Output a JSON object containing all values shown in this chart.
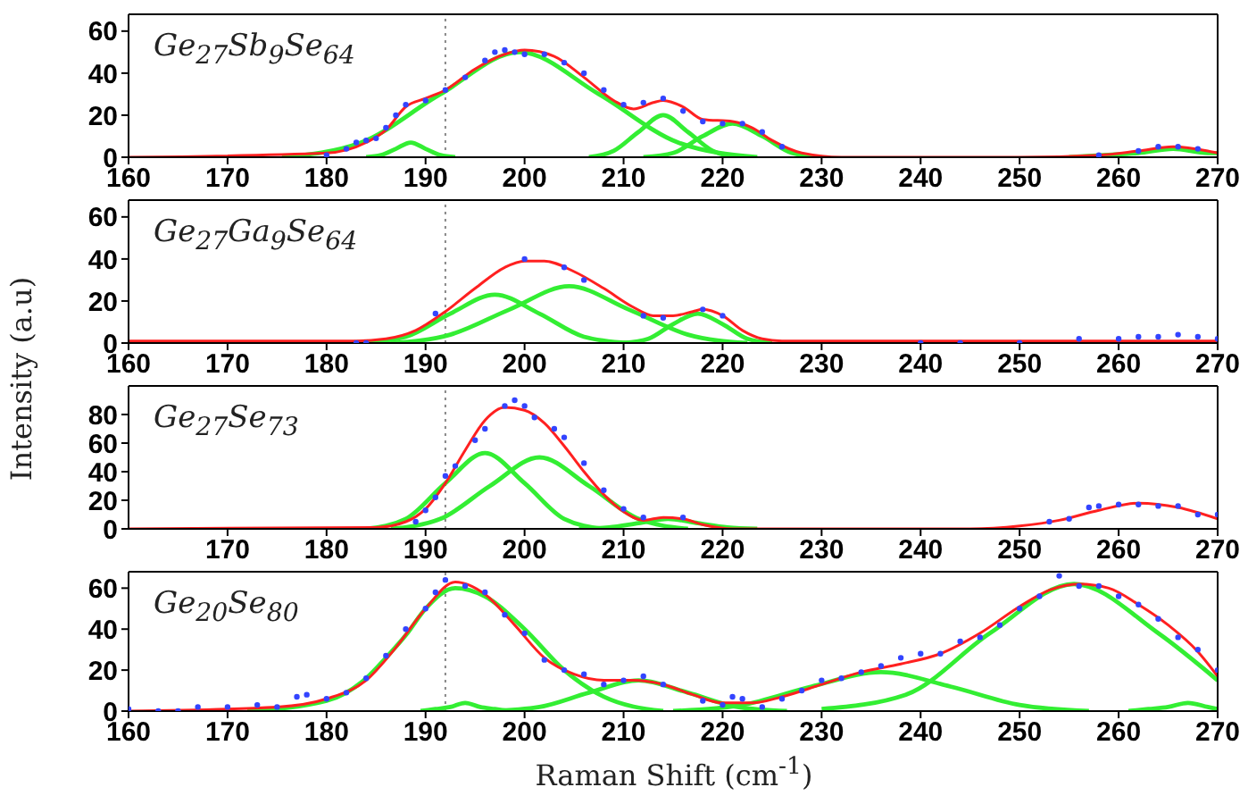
{
  "chart_data": [
    {
      "type": "line",
      "title": "Ge$_{27}$Sb$_{9}$Se$_{64}$",
      "xlim": [
        160,
        270
      ],
      "xticks": [
        160,
        170,
        180,
        190,
        200,
        210,
        220,
        230,
        240,
        250,
        260,
        270
      ],
      "ylim": [
        0,
        68
      ],
      "yticks": [
        0,
        20,
        40,
        60
      ],
      "ref_lines": [
        {
          "axis": "x",
          "value": 192,
          "color": "#888888",
          "line_style": "dotted"
        }
      ],
      "series": [
        {
          "type": "scatter",
          "marker": "circle",
          "color": "#3344ff",
          "x": [
            180,
            182,
            183,
            184,
            185,
            186,
            187,
            188,
            190,
            192,
            194,
            196,
            197,
            198,
            199,
            200,
            202,
            204,
            206,
            208,
            210,
            212,
            214,
            216,
            218,
            220,
            222,
            224,
            226,
            258,
            262,
            264,
            266,
            268
          ],
          "values": [
            1,
            4,
            7,
            8,
            9,
            14,
            20,
            25,
            27,
            32,
            38,
            46,
            50,
            51,
            50,
            49,
            49,
            45,
            40,
            32,
            25,
            26,
            28,
            22,
            17,
            16,
            16,
            12,
            5,
            1,
            3,
            5,
            5,
            4
          ]
        },
        {
          "color": "#33ee33",
          "x": [
            175.5,
            183.5,
            191.5,
            199.5,
            207.5,
            215.5,
            223.5
          ],
          "values": [
            0,
            7,
            30,
            50,
            30,
            7,
            0
          ]
        },
        {
          "color": "#33ee33",
          "x": [
            184,
            185.5,
            187,
            188.5,
            190,
            191.5,
            193
          ],
          "values": [
            0,
            1,
            4,
            7,
            4,
            1,
            0
          ]
        },
        {
          "color": "#33ee33",
          "x": [
            206.5,
            209,
            211.5,
            214,
            216.5,
            219,
            221.5
          ],
          "values": [
            0,
            3,
            12,
            20,
            12,
            3,
            0
          ]
        },
        {
          "color": "#33ee33",
          "x": [
            212,
            215,
            218,
            221,
            224,
            227,
            230
          ],
          "values": [
            0,
            2,
            10,
            16,
            10,
            2,
            0
          ]
        },
        {
          "color": "#33ee33",
          "x": [
            255,
            258.5,
            262,
            265.5,
            269,
            270
          ],
          "values": [
            0,
            1,
            2,
            4,
            2,
            2
          ]
        },
        {
          "color": "#ff2020",
          "x": [
            160,
            180,
            184,
            186,
            188,
            190,
            192,
            195,
            198,
            200,
            203,
            206,
            209,
            211,
            213,
            214,
            216,
            218,
            221,
            223,
            225,
            228,
            232,
            250,
            258,
            262,
            265.5,
            269,
            270
          ],
          "values": [
            0,
            2,
            7,
            13,
            24,
            28,
            32,
            42,
            49,
            51,
            48,
            38,
            27,
            23,
            26,
            27,
            24,
            18,
            17,
            14,
            8,
            2,
            0,
            0,
            1,
            3,
            5,
            3,
            2
          ]
        }
      ]
    },
    {
      "type": "line",
      "title": "Ge$_{27}$Ga$_{9}$Se$_{64}$",
      "ylabel": "Intensity (a.u)",
      "xlim": [
        160,
        270
      ],
      "xticks": [
        160,
        170,
        180,
        190,
        200,
        210,
        220,
        230,
        240,
        250,
        260,
        270
      ],
      "ylim": [
        0,
        68
      ],
      "yticks": [
        0,
        20,
        40,
        60
      ],
      "ref_lines": [
        {
          "axis": "x",
          "value": 192,
          "color": "#888888",
          "line_style": "dotted"
        }
      ],
      "series": [
        {
          "type": "scatter",
          "marker": "circle",
          "color": "#3344ff",
          "x": [
            183,
            184,
            191,
            200,
            204,
            206,
            212,
            214,
            218,
            220,
            240,
            244,
            250,
            256,
            260,
            262,
            264,
            266,
            268,
            270
          ],
          "values": [
            0,
            0,
            14,
            40,
            36,
            30,
            13,
            12,
            16,
            13,
            0,
            0,
            0,
            2,
            2,
            3,
            3,
            4,
            3,
            2
          ]
        },
        {
          "color": "#33ee33",
          "x": [
            183.5,
            188,
            192.5,
            197,
            201.5,
            206,
            210.5
          ],
          "values": [
            0,
            3,
            14,
            23,
            14,
            3,
            0
          ]
        },
        {
          "color": "#33ee33",
          "x": [
            186.5,
            192.5,
            198.5,
            204.5,
            210.5,
            216.5,
            222.5
          ],
          "values": [
            0,
            4,
            16,
            27,
            16,
            4,
            0
          ]
        },
        {
          "color": "#33ee33",
          "x": [
            210,
            212.5,
            215,
            217.5,
            220,
            222.5,
            225
          ],
          "values": [
            0,
            2,
            9,
            14,
            9,
            2,
            0
          ]
        },
        {
          "color": "#ff2020",
          "x": [
            160,
            183,
            186,
            189,
            192,
            195,
            198,
            200,
            202,
            205,
            208,
            211,
            213,
            215,
            217,
            218,
            220,
            222,
            224,
            226,
            270
          ],
          "values": [
            1,
            1,
            2,
            6,
            15,
            26,
            36,
            39,
            39,
            34,
            26,
            17,
            13,
            13,
            15,
            16,
            13,
            6,
            2,
            1,
            1
          ]
        }
      ]
    },
    {
      "type": "line",
      "title": "Ge$_{27}$Se$_{73}$",
      "xlim": [
        160,
        270
      ],
      "xticks": [
        170,
        180,
        190,
        200,
        210,
        220,
        230,
        240,
        250,
        260,
        270
      ],
      "ylim": [
        0,
        100
      ],
      "yticks": [
        0,
        20,
        40,
        60,
        80
      ],
      "ref_lines": [
        {
          "axis": "x",
          "value": 192,
          "color": "#888888",
          "line_style": "dotted"
        }
      ],
      "series": [
        {
          "type": "scatter",
          "marker": "circle",
          "color": "#3344ff",
          "x": [
            189,
            190,
            191,
            192,
            193,
            195,
            196,
            198,
            199,
            200,
            201,
            203,
            204,
            206,
            208,
            210,
            212,
            216,
            253,
            255,
            257,
            258,
            260,
            262,
            264,
            266,
            268,
            270
          ],
          "values": [
            5,
            13,
            22,
            37,
            44,
            62,
            70,
            86,
            90,
            86,
            78,
            70,
            64,
            46,
            27,
            14,
            8,
            8,
            5,
            7,
            15,
            16,
            17,
            17,
            16,
            16,
            10,
            10
          ]
        },
        {
          "color": "#33ee33",
          "x": [
            184,
            188,
            192,
            196,
            200,
            204,
            208
          ],
          "values": [
            0,
            7,
            32,
            53,
            32,
            7,
            0
          ]
        },
        {
          "color": "#33ee33",
          "x": [
            186.5,
            191.5,
            196.5,
            201.5,
            206.5,
            211.5,
            216.5
          ],
          "values": [
            0,
            7,
            30,
            50,
            30,
            7,
            0
          ]
        },
        {
          "color": "#33ee33",
          "x": [
            205.5,
            208.5,
            211.5,
            214.5,
            217.5,
            220.5,
            223.5
          ],
          "values": [
            0,
            1,
            4,
            7,
            4,
            1,
            0
          ]
        },
        {
          "color": "#ff2020",
          "x": [
            160,
            185,
            188,
            190,
            192,
            194,
            196,
            198,
            200,
            202,
            204,
            206,
            208,
            210,
            212,
            214,
            216,
            218,
            221,
            245,
            250,
            254,
            258,
            262,
            266,
            270
          ],
          "values": [
            0,
            1,
            5,
            14,
            32,
            55,
            76,
            85,
            83,
            74,
            58,
            40,
            24,
            12,
            6,
            8,
            7,
            3,
            0,
            0,
            2,
            6,
            13,
            18,
            15,
            7
          ]
        }
      ]
    },
    {
      "type": "line",
      "title": "Ge$_{20}$Se$_{80}$",
      "xlabel": "Raman Shift (cm$^{-1}$)",
      "xlim": [
        160,
        270
      ],
      "xticks": [
        160,
        170,
        180,
        190,
        200,
        210,
        220,
        230,
        240,
        250,
        260,
        270
      ],
      "ylim": [
        0,
        68
      ],
      "yticks": [
        0,
        20,
        40,
        60
      ],
      "ref_lines": [
        {
          "axis": "x",
          "value": 192,
          "color": "#888888",
          "line_style": "dotted"
        }
      ],
      "series": [
        {
          "type": "scatter",
          "marker": "circle",
          "color": "#3344ff",
          "x": [
            160,
            163,
            165,
            167,
            170,
            173,
            175,
            177,
            178,
            180,
            182,
            184,
            186,
            188,
            190,
            191,
            192,
            194,
            196,
            198,
            200,
            202,
            204,
            206,
            208,
            210,
            212,
            214,
            218,
            220,
            221,
            222,
            224,
            226,
            228,
            230,
            232,
            234,
            236,
            238,
            240,
            242,
            244,
            246,
            248,
            250,
            252,
            254,
            256,
            258,
            260,
            262,
            264,
            266,
            268,
            270
          ],
          "values": [
            1,
            0,
            0,
            2,
            2,
            3,
            2,
            7,
            8,
            6,
            9,
            16,
            27,
            40,
            50,
            58,
            64,
            61,
            58,
            47,
            38,
            25,
            20,
            18,
            13,
            15,
            17,
            13,
            5,
            3,
            7,
            6,
            2,
            6,
            10,
            15,
            16,
            19,
            22,
            26,
            28,
            28,
            34,
            36,
            42,
            50,
            56,
            66,
            61,
            61,
            56,
            52,
            45,
            36,
            30,
            20
          ]
        },
        {
          "color": "#33ee33",
          "x": [
            172,
            180,
            184,
            186,
            188,
            190,
            193,
            196,
            200,
            204,
            208,
            214
          ],
          "values": [
            0,
            5,
            16,
            26,
            37,
            50,
            60,
            56,
            40,
            20,
            7,
            0
          ]
        },
        {
          "color": "#33ee33",
          "x": [
            189.5,
            191,
            192.5,
            194,
            195.5,
            197,
            198.5
          ],
          "values": [
            0,
            1,
            2,
            4,
            2,
            1,
            0
          ]
        },
        {
          "color": "#33ee33",
          "x": [
            196.5,
            201.5,
            206.5,
            211.5,
            216.5,
            221.5,
            226.5
          ],
          "values": [
            0,
            2,
            9,
            15,
            9,
            2,
            0
          ]
        },
        {
          "color": "#33ee33",
          "x": [
            215,
            222,
            229,
            236,
            243,
            250,
            257
          ],
          "values": [
            0,
            3,
            12,
            19,
            12,
            3,
            0
          ]
        },
        {
          "color": "#33ee33",
          "x": [
            230,
            238.5,
            247,
            255.5,
            264,
            270
          ],
          "values": [
            1,
            8,
            38,
            62,
            38,
            15
          ]
        },
        {
          "color": "#33ee33",
          "x": [
            261,
            263,
            265,
            267,
            269,
            270
          ],
          "values": [
            0,
            1,
            2,
            4,
            2,
            1
          ]
        },
        {
          "color": "#ff2020",
          "x": [
            160,
            175,
            180,
            184,
            187,
            190,
            193,
            196,
            199,
            202,
            205,
            208,
            211,
            214,
            217,
            220,
            223,
            226,
            230,
            234,
            238,
            242,
            246,
            250,
            253,
            256,
            259,
            262,
            265,
            268,
            270
          ],
          "values": [
            0,
            2,
            6,
            15,
            31,
            50,
            63,
            57,
            42,
            26,
            18,
            15,
            15,
            13,
            8,
            4,
            4,
            7,
            13,
            19,
            23,
            28,
            38,
            51,
            59,
            62,
            60,
            52,
            42,
            29,
            17
          ]
        }
      ]
    }
  ]
}
